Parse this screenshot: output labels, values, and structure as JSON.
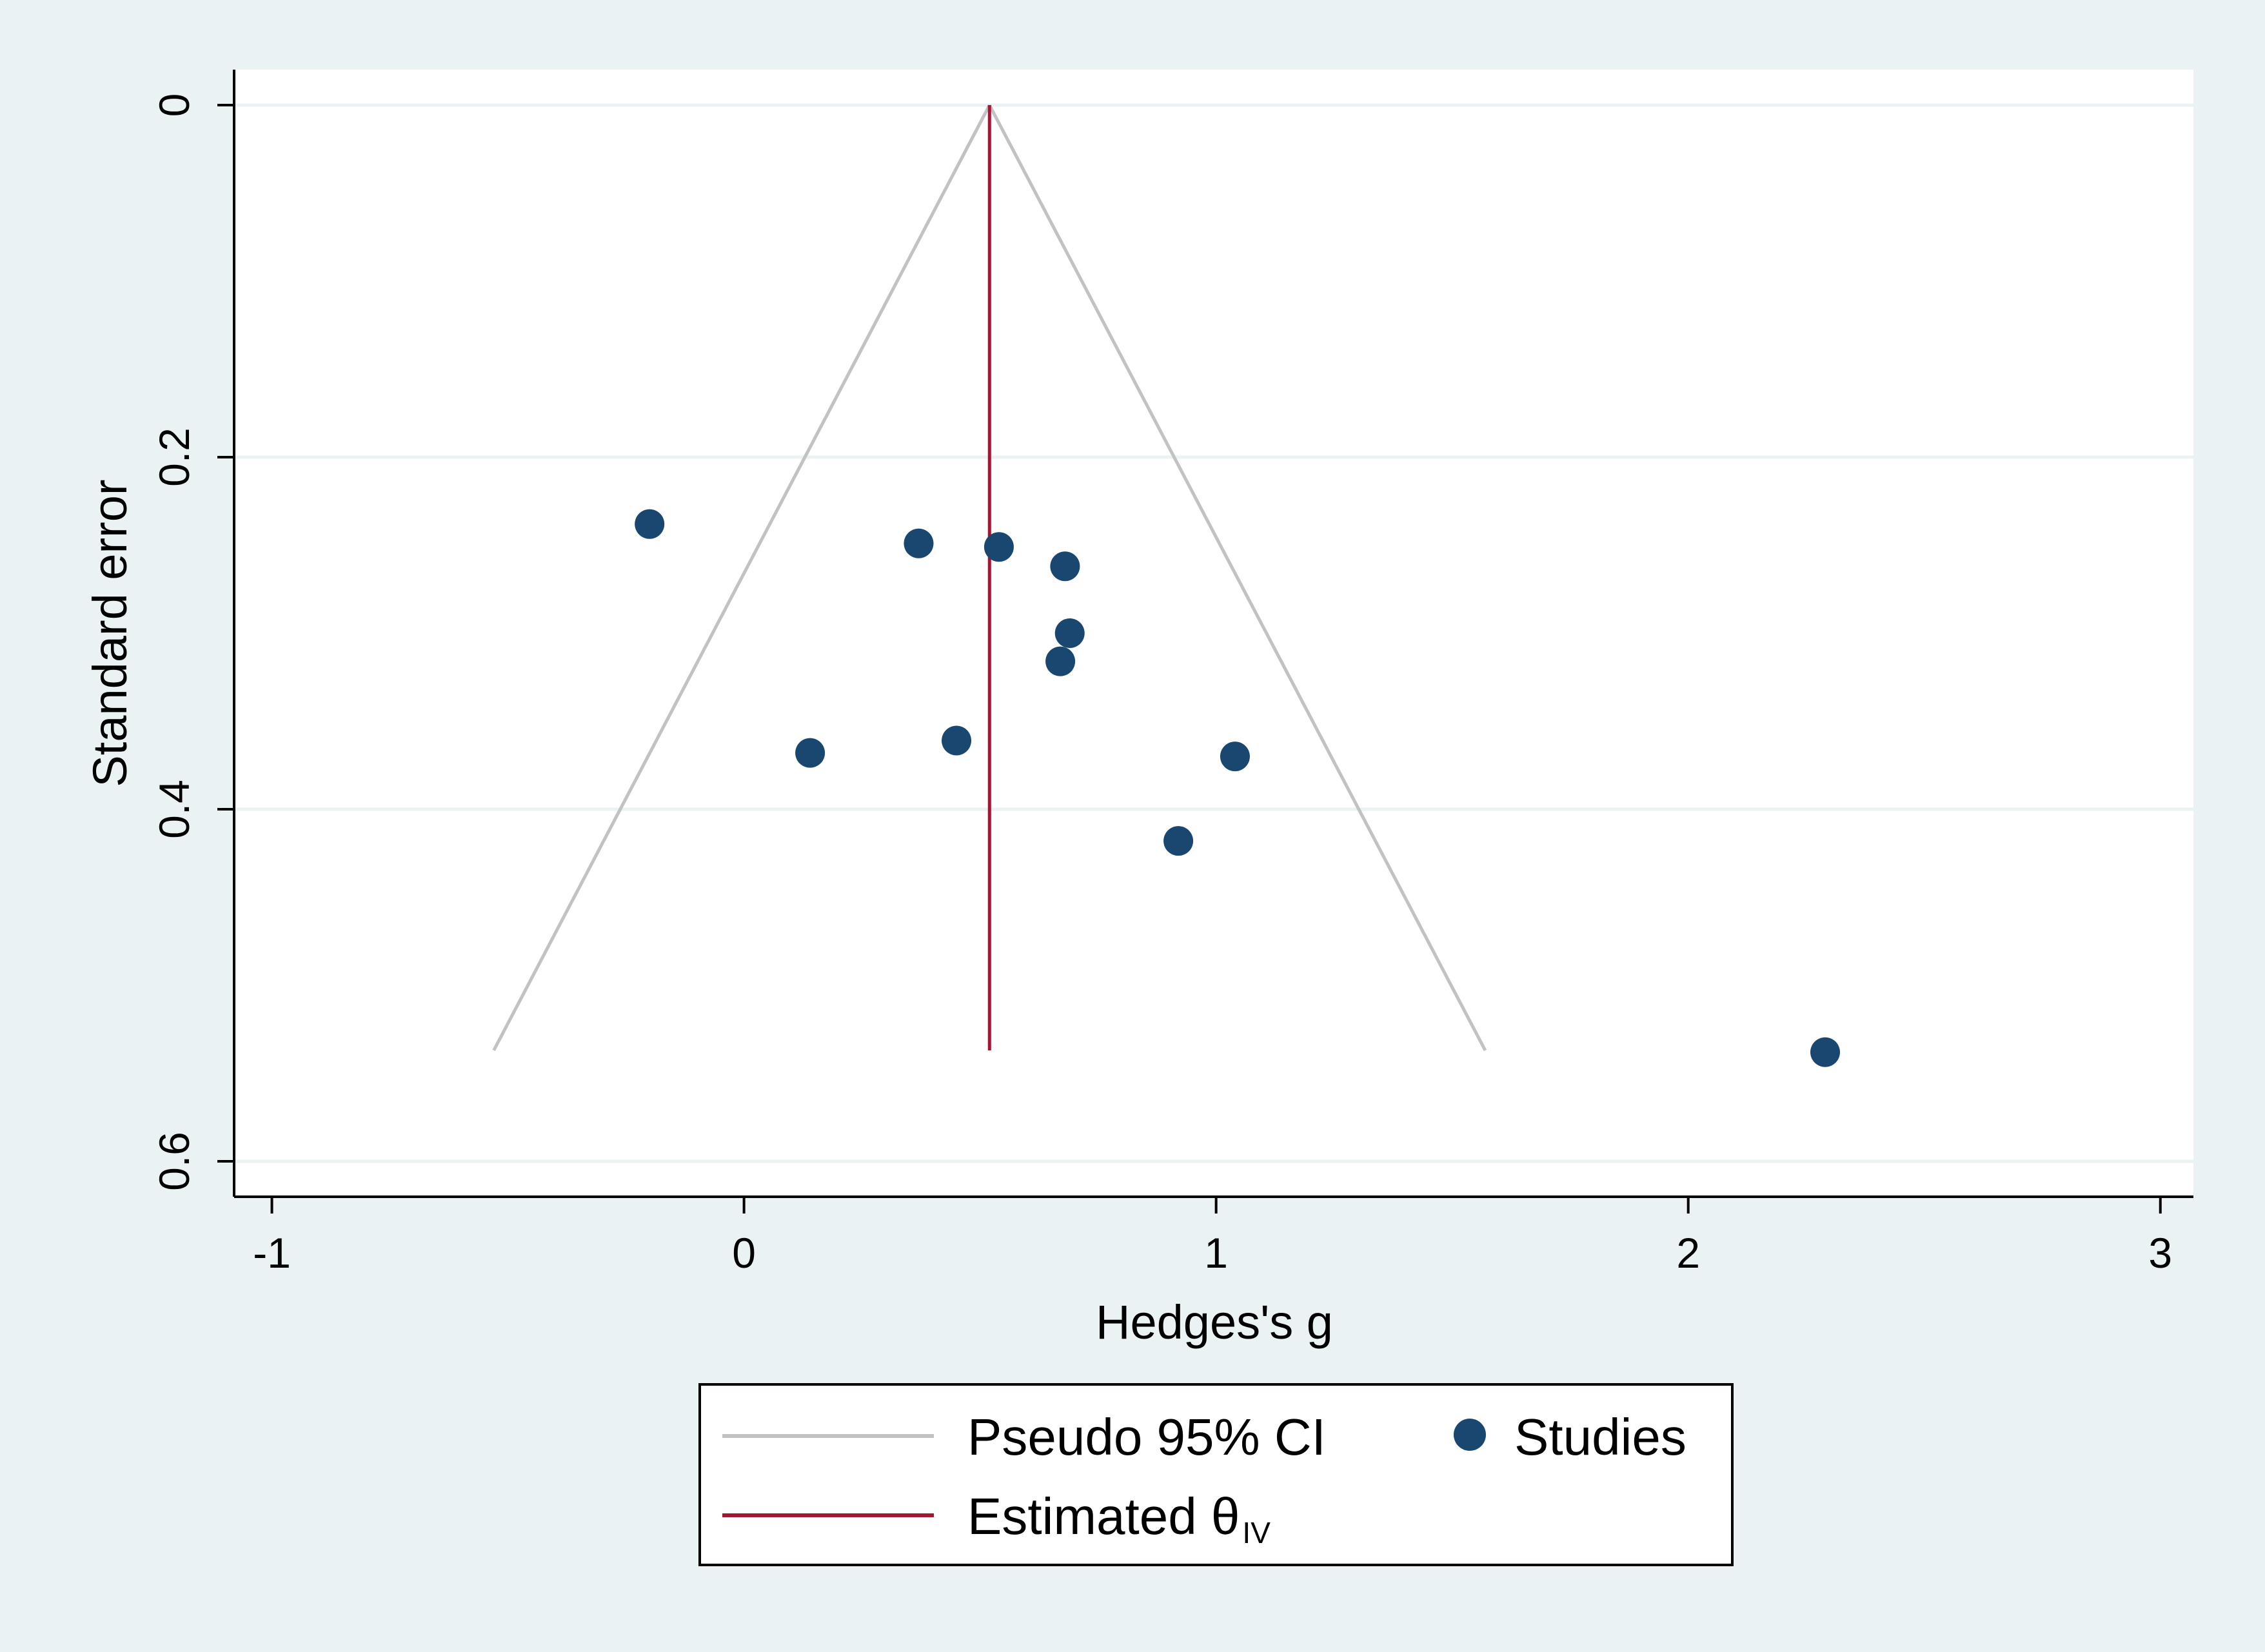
{
  "chart_data": {
    "type": "scatter",
    "title": "",
    "xlabel": "Hedges's g",
    "ylabel": "Standard error",
    "xlim": [
      -1.08,
      3.07
    ],
    "ylim": [
      0,
      0.62
    ],
    "y_reversed": true,
    "x_ticks": [
      -1,
      0,
      1,
      2,
      3
    ],
    "x_tick_labels": [
      "-1",
      "0",
      "1",
      "2",
      "3"
    ],
    "y_ticks": [
      0,
      0.2,
      0.4,
      0.6
    ],
    "y_tick_labels": [
      "0",
      "0.2",
      "0.4",
      "0.6"
    ],
    "grid": "horizontal",
    "estimate": 0.52,
    "funnel": {
      "apex": [
        0.52,
        0
      ],
      "base_se": 0.537,
      "left_bottom": [
        -0.53,
        0.537
      ],
      "right_bottom": [
        1.57,
        0.537
      ]
    },
    "series": [
      {
        "name": "Studies",
        "points": [
          {
            "x": -0.2,
            "y": 0.238
          },
          {
            "x": 0.37,
            "y": 0.249
          },
          {
            "x": 0.54,
            "y": 0.251
          },
          {
            "x": 0.68,
            "y": 0.262
          },
          {
            "x": 0.69,
            "y": 0.3
          },
          {
            "x": 0.67,
            "y": 0.316
          },
          {
            "x": 0.45,
            "y": 0.361
          },
          {
            "x": 0.14,
            "y": 0.368
          },
          {
            "x": 1.04,
            "y": 0.37
          },
          {
            "x": 0.92,
            "y": 0.418
          },
          {
            "x": 2.29,
            "y": 0.538
          }
        ]
      }
    ],
    "legend": {
      "placement": "bottom-center",
      "entries": [
        {
          "label": "Pseudo 95% CI",
          "sub": "",
          "kind": "line",
          "color": "#c2c2c2"
        },
        {
          "label": "Studies",
          "sub": "",
          "kind": "marker",
          "color": "#1a476f"
        },
        {
          "label": "Estimated θ",
          "sub": "IV",
          "kind": "line",
          "color": "#a3162f"
        }
      ]
    },
    "colors": {
      "background": "#eaf2f3",
      "plot_background": "#ffffff",
      "gridline": "#eaf2f3",
      "ci_line": "#c2c2c2",
      "estimate_line": "#a3162f",
      "marker": "#1a476f",
      "axis": "#000000"
    }
  }
}
